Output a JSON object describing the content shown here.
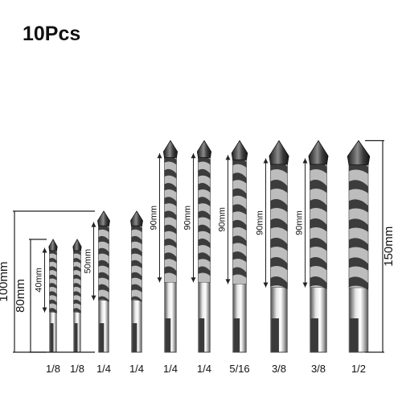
{
  "title": "10Pcs",
  "dimensions": {
    "overall_100": "100mm",
    "overall_80": "80mm",
    "overall_150": "150mm",
    "flute_40": "40mm",
    "flute_50": "50mm",
    "flute_90": "90mm"
  },
  "bits": [
    {
      "size": "1/8",
      "overall_mm": 80,
      "flute_mm": 40,
      "flute_label": "40mm"
    },
    {
      "size": "1/8",
      "overall_mm": 80,
      "flute_mm": 40,
      "flute_label": ""
    },
    {
      "size": "1/4",
      "overall_mm": 100,
      "flute_mm": 50,
      "flute_label": "50mm"
    },
    {
      "size": "1/4",
      "overall_mm": 100,
      "flute_mm": 50,
      "flute_label": ""
    },
    {
      "size": "1/4",
      "overall_mm": 150,
      "flute_mm": 90,
      "flute_label": "90mm"
    },
    {
      "size": "1/4",
      "overall_mm": 150,
      "flute_mm": 90,
      "flute_label": "90mm"
    },
    {
      "size": "5/16",
      "overall_mm": 150,
      "flute_mm": 90,
      "flute_label": "90mm"
    },
    {
      "size": "3/8",
      "overall_mm": 150,
      "flute_mm": 90,
      "flute_label": "90mm"
    },
    {
      "size": "3/8",
      "overall_mm": 150,
      "flute_mm": 90,
      "flute_label": "90mm"
    },
    {
      "size": "1/2",
      "overall_mm": 150,
      "flute_mm": 90,
      "flute_label": ""
    }
  ],
  "colors": {
    "background": "#ffffff",
    "text": "#111111",
    "line": "#222222",
    "carbide": "#3a3a3a",
    "steel_light": "#e6e6e6",
    "steel_mid": "#9a9a9a",
    "steel_dark": "#4a4a4a"
  }
}
